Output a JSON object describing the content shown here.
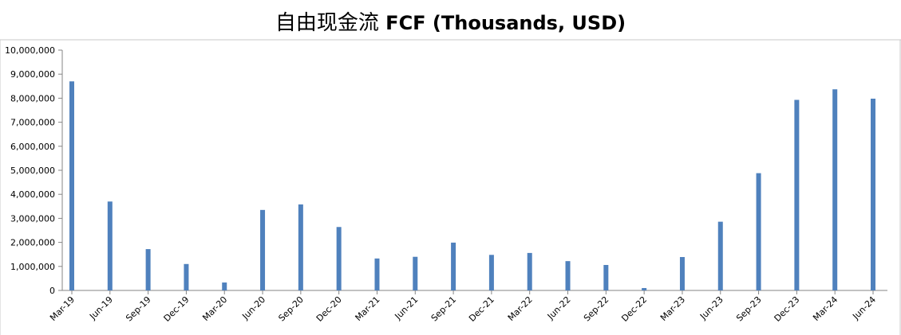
{
  "chart_data": {
    "type": "bar",
    "title_cn": "自由现金流",
    "title_en": "FCF (Thousands, USD)",
    "xlabel": "",
    "ylabel": "",
    "ylim": [
      0,
      10000000
    ],
    "yticks": [
      0,
      1000000,
      2000000,
      3000000,
      4000000,
      5000000,
      6000000,
      7000000,
      8000000,
      9000000,
      10000000
    ],
    "ytick_labels": [
      "0",
      "1,000,000",
      "2,000,000",
      "3,000,000",
      "4,000,000",
      "5,000,000",
      "6,000,000",
      "7,000,000",
      "8,000,000",
      "9,000,000",
      "10,000,000"
    ],
    "grid": false,
    "legend": "none",
    "bar_color": "#4f81bd",
    "categories": [
      "Mar-19",
      "Jun-19",
      "Sep-19",
      "Dec-19",
      "Mar-20",
      "Jun-20",
      "Sep-20",
      "Dec-20",
      "Mar-21",
      "Jun-21",
      "Sep-21",
      "Dec-21",
      "Mar-22",
      "Jun-22",
      "Sep-22",
      "Dec-22",
      "Mar-23",
      "Jun-23",
      "Sep-23",
      "Dec-23",
      "Mar-24",
      "Jun-24"
    ],
    "values": [
      8700000,
      3700000,
      1720000,
      1100000,
      330000,
      3350000,
      3580000,
      2640000,
      1330000,
      1400000,
      1990000,
      1480000,
      1560000,
      1220000,
      1060000,
      100000,
      1390000,
      2860000,
      4880000,
      7930000,
      8370000,
      7980000
    ]
  }
}
